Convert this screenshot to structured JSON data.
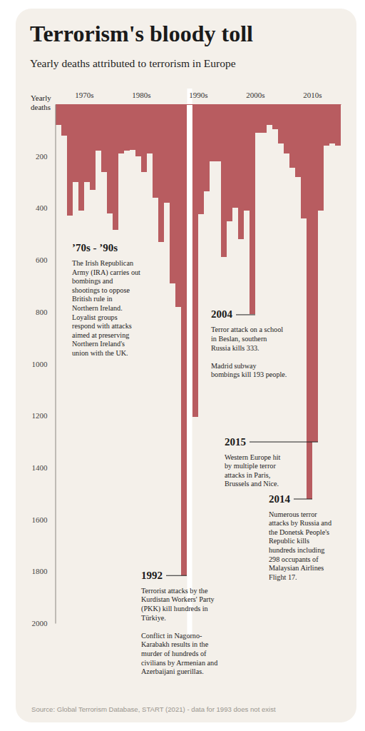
{
  "chart_data": {
    "type": "bar",
    "title": "Terrorism's bloody toll",
    "subtitle": "Yearly deaths attributed to terrorism in Europe",
    "y_label": "Yearly deaths",
    "x": [
      1970,
      1971,
      1972,
      1973,
      1974,
      1975,
      1976,
      1977,
      1978,
      1979,
      1980,
      1981,
      1982,
      1983,
      1984,
      1985,
      1986,
      1987,
      1988,
      1989,
      1990,
      1991,
      1992,
      1993,
      1994,
      1995,
      1996,
      1997,
      1998,
      1999,
      2000,
      2001,
      2002,
      2003,
      2004,
      2005,
      2006,
      2007,
      2008,
      2009,
      2010,
      2011,
      2012,
      2013,
      2014,
      2015,
      2016,
      2017,
      2018,
      2019
    ],
    "values": [
      80,
      120,
      430,
      300,
      410,
      300,
      330,
      180,
      260,
      420,
      485,
      190,
      180,
      175,
      200,
      260,
      190,
      360,
      530,
      380,
      690,
      780,
      1815,
      null,
      1205,
      425,
      335,
      220,
      220,
      590,
      450,
      400,
      520,
      410,
      810,
      110,
      110,
      80,
      95,
      150,
      190,
      245,
      280,
      440,
      1520,
      1300,
      410,
      160,
      150,
      160
    ],
    "color": "#b85c60",
    "xlim": [
      1970,
      2020
    ],
    "xticks": [
      {
        "value": 1975,
        "label": "1970s"
      },
      {
        "value": 1985,
        "label": "1980s"
      },
      {
        "value": 1995,
        "label": "1990s"
      },
      {
        "value": 2005,
        "label": "2000s"
      },
      {
        "value": 2015,
        "label": "2010s"
      }
    ],
    "ylim": [
      0,
      2000
    ],
    "yticks": [
      200,
      400,
      600,
      800,
      1000,
      1200,
      1400,
      1600,
      1800,
      2000
    ],
    "annotations": [
      {
        "title": "’70s - ’90s",
        "paragraphs": [
          [
            "The Irish Republican",
            "Army (IRA) carries out",
            "bombings and",
            "shootings to oppose",
            "British rule in",
            "Northern Ireland.",
            "Loyalist groups",
            "respond with attacks",
            "aimed at preserving",
            "Northern Ireland's",
            "union with the UK."
          ]
        ]
      },
      {
        "title": "2004",
        "paragraphs": [
          [
            "Terror attack on a school",
            "in Beslan, southern",
            "Russia kills 333."
          ],
          [
            "Madrid subway",
            "bombings kill 193 people."
          ]
        ]
      },
      {
        "title": "2015",
        "paragraphs": [
          [
            "Western Europe hit",
            "by multiple terror",
            "attacks in Paris,",
            "Brussels and Nice."
          ]
        ]
      },
      {
        "title": "2014",
        "paragraphs": [
          [
            "Numerous terror",
            "attacks by Russia and",
            "the Donetsk People's",
            "Republic kills",
            "hundreds including",
            "298 occupants of",
            "Malaysian Airlines",
            "Flight 17."
          ]
        ]
      },
      {
        "title": "1992",
        "paragraphs": [
          [
            "Terrorist attacks by the",
            "Kurdistan Workers' Party",
            "(PKK) kill hundreds in",
            "Türkiye."
          ],
          [
            "Conflict in Nagorno-",
            "Karabakh results in the",
            "murder of hundreds of",
            "civilians by Armenian and",
            "Azerbaijani guerillas."
          ]
        ]
      }
    ],
    "source": "Source: Global Terrorism Database, START (2021) - data for 1993 does not exist"
  }
}
